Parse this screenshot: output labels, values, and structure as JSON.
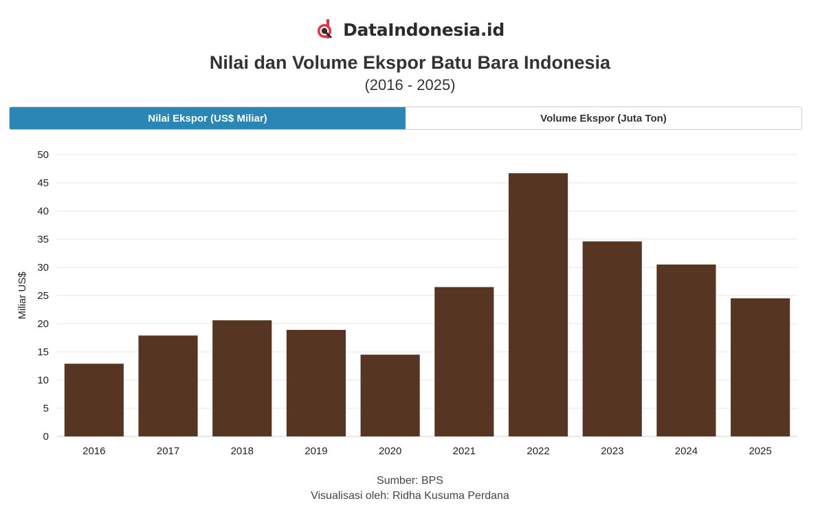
{
  "brand": {
    "name": "DataIndonesia.id",
    "logo_icon": "dataindonesia-logo-icon"
  },
  "header": {
    "title": "Nilai dan Volume Ekspor Batu Bara Indonesia",
    "subtitle": "(2016 - 2025)"
  },
  "tabs": [
    {
      "label": "Nilai Ekspor (US$ Miliar)",
      "active": true
    },
    {
      "label": "Volume Ekspor (Juta Ton)",
      "active": false
    }
  ],
  "colors": {
    "bar": "#54311f",
    "tab_active": "#2a86b4",
    "grid": "#e6e6e6"
  },
  "chart_data": {
    "type": "bar",
    "categories": [
      "2016",
      "2017",
      "2018",
      "2019",
      "2020",
      "2021",
      "2022",
      "2023",
      "2024",
      "2025"
    ],
    "values": [
      12.9,
      17.9,
      20.6,
      18.9,
      14.5,
      26.5,
      46.7,
      34.6,
      30.5,
      24.5
    ],
    "ylabel": "Miliar US$",
    "xlabel": "",
    "ylim": [
      0,
      50
    ],
    "yticks": [
      0,
      5,
      10,
      15,
      20,
      25,
      30,
      35,
      40,
      45,
      50
    ],
    "grid": true,
    "legend": "none"
  },
  "footer": {
    "source": "Sumber: BPS",
    "credit": "Visualisasi oleh: Ridha Kusuma Perdana"
  }
}
